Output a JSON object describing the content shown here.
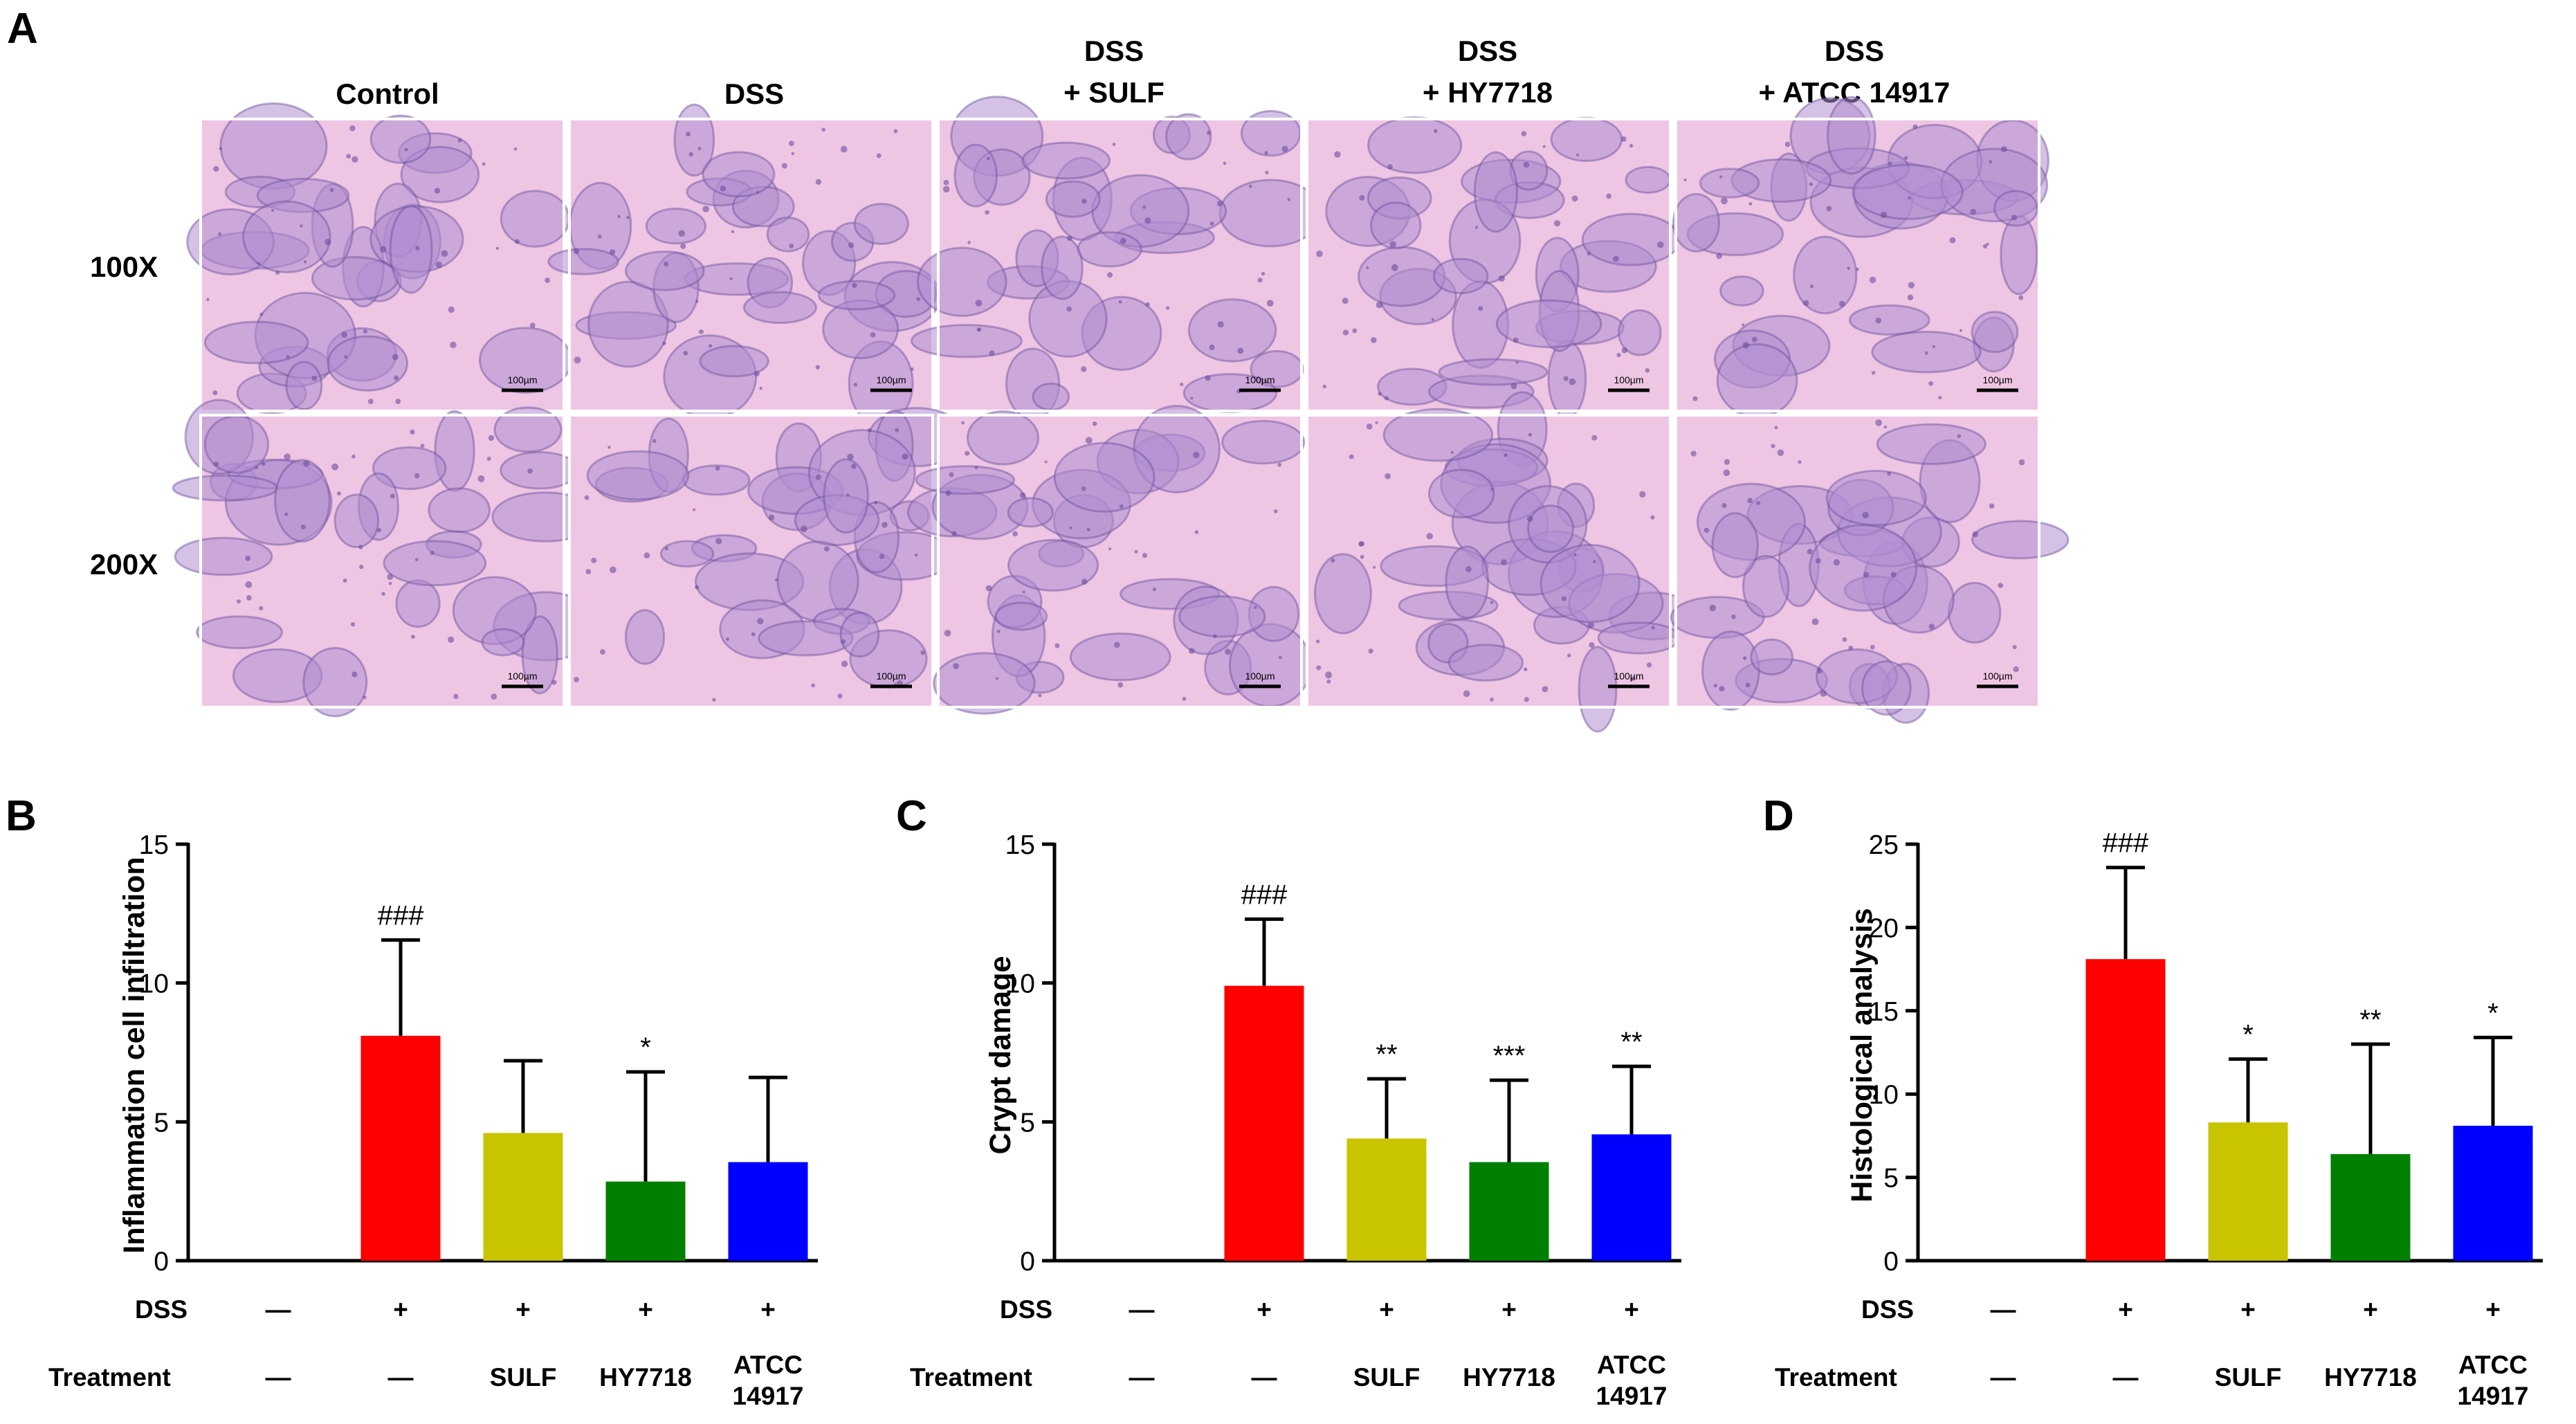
{
  "panel_a": {
    "label": "A",
    "columns": [
      {
        "line1": "Control",
        "line2": ""
      },
      {
        "line1": "DSS",
        "line2": ""
      },
      {
        "line1": "DSS",
        "line2": "+ SULF"
      },
      {
        "line1": "DSS",
        "line2": "+ HY7718"
      },
      {
        "line1": "DSS",
        "line2": "+ ATCC 14917"
      }
    ],
    "rows": [
      "100X",
      "200X"
    ],
    "scalebar_text": "100µm"
  },
  "row_labels": {
    "dss": "DSS",
    "treatment": "Treatment",
    "dss_values": [
      "—",
      "+",
      "+",
      "+",
      "+"
    ],
    "treatment_values": [
      {
        "line1": "—",
        "line2": ""
      },
      {
        "line1": "—",
        "line2": ""
      },
      {
        "line1": "SULF",
        "line2": ""
      },
      {
        "line1": "HY7718",
        "line2": ""
      },
      {
        "line1": "ATCC",
        "line2": "14917"
      }
    ]
  },
  "colors": {
    "bars": [
      "#ffffff",
      "#ff0000",
      "#c8c400",
      "#008000",
      "#0000ff"
    ],
    "tissue_bg": "#eec6e4",
    "tissue_tissue": "#b18ed0",
    "tissue_dark": "#6a4f9c"
  },
  "chart_data": [
    {
      "panel": "B",
      "type": "bar",
      "ylabel": "Inflammation cell infiltration",
      "ylim": [
        0,
        15
      ],
      "yticks": [
        0,
        5,
        10,
        15
      ],
      "categories": [
        "Control",
        "DSS",
        "SULF",
        "HY7718",
        "ATCC 14917"
      ],
      "values": [
        0,
        8.1,
        4.6,
        2.85,
        3.55
      ],
      "errors": [
        0,
        3.45,
        2.6,
        3.95,
        3.05
      ],
      "annotations": [
        "",
        "###",
        "",
        "*",
        ""
      ]
    },
    {
      "panel": "C",
      "type": "bar",
      "ylabel": "Crypt damage",
      "ylim": [
        0,
        15
      ],
      "yticks": [
        0,
        5,
        10,
        15
      ],
      "categories": [
        "Control",
        "DSS",
        "SULF",
        "HY7718",
        "ATCC 14917"
      ],
      "values": [
        0,
        9.9,
        4.4,
        3.55,
        4.55
      ],
      "errors": [
        0,
        2.4,
        2.15,
        2.95,
        2.45
      ],
      "annotations": [
        "",
        "###",
        "**",
        "***",
        "**"
      ]
    },
    {
      "panel": "D",
      "type": "bar",
      "ylabel": "Histological analysis",
      "ylim": [
        0,
        25
      ],
      "yticks": [
        0,
        5,
        10,
        15,
        20,
        25
      ],
      "categories": [
        "Control",
        "DSS",
        "SULF",
        "HY7718",
        "ATCC 14917"
      ],
      "values": [
        0,
        18.1,
        8.3,
        6.4,
        8.1
      ],
      "errors": [
        0,
        5.5,
        3.8,
        6.6,
        5.3
      ],
      "annotations": [
        "",
        "###",
        "*",
        "**",
        "*"
      ]
    }
  ]
}
